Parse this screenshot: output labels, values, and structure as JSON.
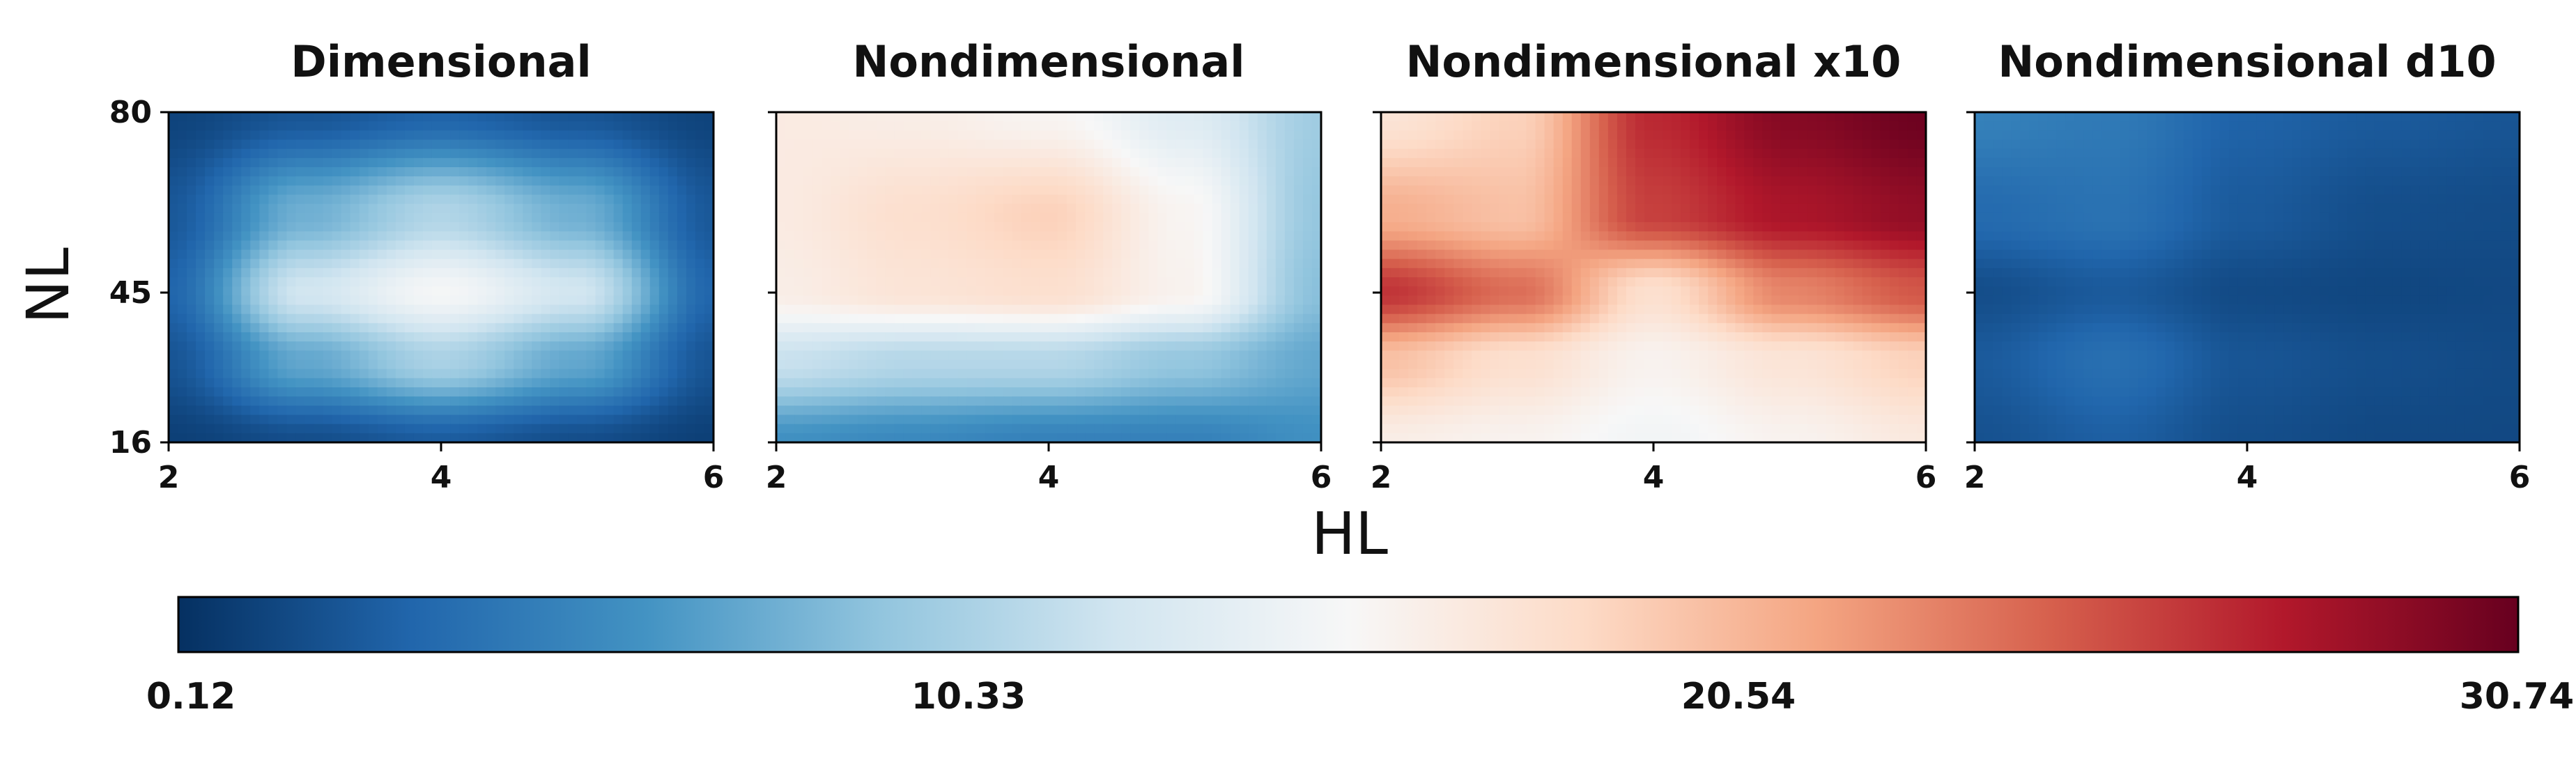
{
  "chart_data": {
    "type": "heatmap",
    "colormap": "RdBu_r",
    "xlabel": "HL",
    "ylabel": "NL",
    "xlim": [
      2,
      6
    ],
    "ylim": [
      16,
      80
    ],
    "x_ticks": [
      "2",
      "4",
      "6"
    ],
    "y_ticks": [
      "16",
      "45",
      "80"
    ],
    "grid": false,
    "colorbar": {
      "orientation": "horizontal",
      "placement": "bottom",
      "range": [
        0.12,
        30.74
      ],
      "ticks": [
        "0.12",
        "10.33",
        "20.54",
        "30.74"
      ]
    },
    "x": [
      2,
      3,
      4,
      5,
      6
    ],
    "y": [
      16,
      32,
      45,
      60,
      80
    ],
    "panels": [
      {
        "title": "Dimensional",
        "z": [
          [
            1.0,
            1.8,
            2.6,
            1.8,
            1.0
          ],
          [
            2.2,
            7.5,
            10.5,
            7.5,
            2.2
          ],
          [
            3.2,
            12.5,
            15.2,
            12.5,
            3.2
          ],
          [
            2.4,
            8.0,
            10.8,
            8.0,
            2.4
          ],
          [
            1.2,
            2.2,
            3.0,
            2.2,
            1.2
          ]
        ]
      },
      {
        "title": "Nondimensional",
        "z": [
          [
            6.0,
            5.5,
            5.0,
            5.0,
            6.0
          ],
          [
            12.0,
            11.0,
            11.0,
            9.5,
            7.5
          ],
          [
            16.5,
            17.5,
            18.0,
            16.0,
            9.0
          ],
          [
            16.8,
            18.0,
            19.0,
            15.8,
            9.5
          ],
          [
            16.8,
            16.5,
            15.8,
            13.5,
            10.0
          ]
        ]
      },
      {
        "title": "Nondimensional x10",
        "z": [
          [
            16.5,
            16.0,
            15.0,
            16.0,
            17.0
          ],
          [
            20.0,
            18.0,
            16.0,
            17.5,
            19.0
          ],
          [
            26.5,
            24.0,
            18.0,
            23.0,
            25.0
          ],
          [
            21.0,
            20.0,
            26.0,
            28.0,
            29.0
          ],
          [
            17.5,
            19.0,
            27.0,
            29.5,
            30.5
          ]
        ]
      },
      {
        "title": "Nondimensional d10",
        "z": [
          [
            2.0,
            2.8,
            1.8,
            1.5,
            1.5
          ],
          [
            2.5,
            3.8,
            2.2,
            1.8,
            1.6
          ],
          [
            1.8,
            2.5,
            1.6,
            1.4,
            1.5
          ],
          [
            3.5,
            4.0,
            2.5,
            1.8,
            1.7
          ],
          [
            5.0,
            4.5,
            3.0,
            2.5,
            2.2
          ]
        ]
      }
    ]
  }
}
